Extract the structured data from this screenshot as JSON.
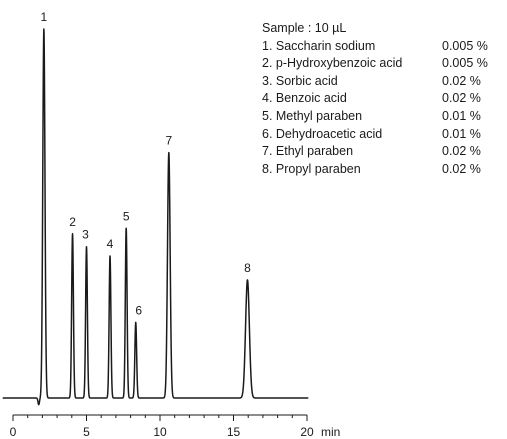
{
  "chart_data": {
    "type": "line",
    "title": "",
    "xlabel": "min",
    "ylabel": "",
    "xlim": [
      0,
      20
    ],
    "x_ticks": [
      0,
      5,
      10,
      15,
      20
    ],
    "y_unit": "relative response",
    "ylim": [
      0,
      1
    ],
    "grid": false,
    "sample_label": "Sample : 10 µL",
    "peaks": [
      {
        "label": "1",
        "time": 2.1,
        "height": 1.0,
        "width": 0.075
      },
      {
        "label": "2",
        "time": 4.05,
        "height": 0.445,
        "width": 0.06
      },
      {
        "label": "3",
        "time": 5.0,
        "height": 0.41,
        "width": 0.06
      },
      {
        "label": "4",
        "time": 6.6,
        "height": 0.385,
        "width": 0.06
      },
      {
        "label": "5",
        "time": 7.7,
        "height": 0.46,
        "width": 0.06
      },
      {
        "label": "6",
        "time": 8.35,
        "height": 0.205,
        "width": 0.06
      },
      {
        "label": "7",
        "time": 10.6,
        "height": 0.665,
        "width": 0.09
      },
      {
        "label": "8",
        "time": 15.95,
        "height": 0.32,
        "width": 0.13
      }
    ],
    "legend": [
      {
        "name": "1. Saccharin sodium",
        "conc": "0.005 %"
      },
      {
        "name": "2. p-Hydroxybenzoic acid",
        "conc": "0.005 %"
      },
      {
        "name": "3. Sorbic acid",
        "conc": "0.02 %"
      },
      {
        "name": "4. Benzoic acid",
        "conc": "0.02 %"
      },
      {
        "name": "5. Methyl paraben",
        "conc": "0.01 %"
      },
      {
        "name": "6. Dehydroacetic acid",
        "conc": "0.01 %"
      },
      {
        "name": "7. Ethyl paraben",
        "conc": "0.02 %"
      },
      {
        "name": "8. Propyl paraben",
        "conc": "0.02 %"
      }
    ]
  }
}
